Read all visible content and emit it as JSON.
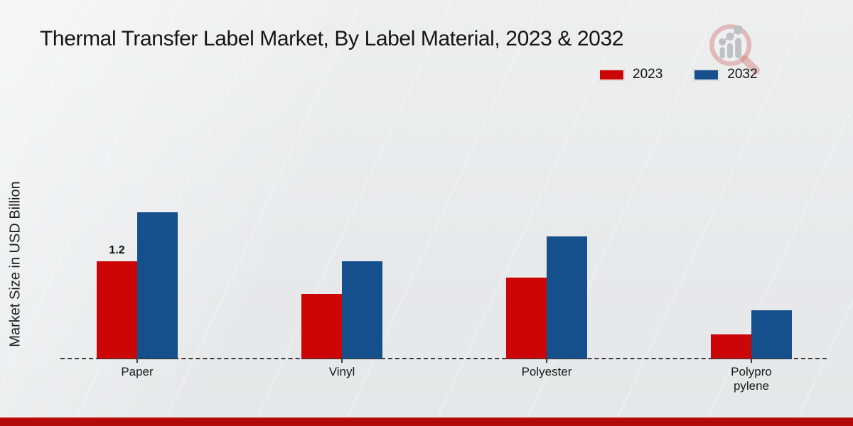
{
  "header": {
    "title": "Thermal Transfer Label Market, By Label Material, 2023 & 2032"
  },
  "y_axis": {
    "label": "Market Size in USD Billion"
  },
  "legend": {
    "items": [
      {
        "label": "2023",
        "color": "#cc0606"
      },
      {
        "label": "2032",
        "color": "#15508c"
      }
    ]
  },
  "watermark": {
    "icon": "magnifier-growth-chart-logo",
    "ring_color": "#d98f8f",
    "bars_color": "#b9bdc2"
  },
  "chart_data": {
    "type": "bar",
    "title": "Thermal Transfer Label Market, By Label Material, 2023 & 2032",
    "categories": [
      "Paper",
      "Vinyl",
      "Polyester",
      "Polypropylene"
    ],
    "category_label_lines": [
      [
        "Paper"
      ],
      [
        "Vinyl"
      ],
      [
        "Polyester"
      ],
      [
        "Polypro",
        "pylene"
      ]
    ],
    "series": [
      {
        "name": "2023",
        "color": "#cc0606",
        "values": [
          1.2,
          0.8,
          1.0,
          0.3
        ]
      },
      {
        "name": "2032",
        "color": "#15508c",
        "values": [
          1.8,
          1.2,
          1.5,
          0.6
        ]
      }
    ],
    "data_labels": [
      {
        "category": "Paper",
        "series": "2023",
        "text": "1.2"
      }
    ],
    "xlabel": "",
    "ylabel": "Market Size in USD Billion",
    "ylim": [
      0,
      2
    ],
    "grid": false,
    "baseline_style": "dashed",
    "legend_position": "top-right"
  },
  "footer": {
    "accent_color": "#b20a0a"
  }
}
